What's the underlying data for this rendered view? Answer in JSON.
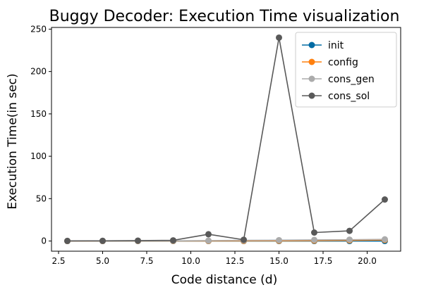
{
  "chart_data": {
    "type": "line",
    "title": "Buggy Decoder: Execution Time visualization",
    "xlabel": "Code distance (d)",
    "ylabel": "Execution Time(in sec)",
    "x": [
      3,
      5,
      7,
      9,
      11,
      13,
      15,
      17,
      19,
      21
    ],
    "xlim": [
      2.1,
      21.9
    ],
    "ylim": [
      -12,
      252
    ],
    "xticks": [
      2.5,
      5.0,
      7.5,
      10.0,
      12.5,
      15.0,
      17.5,
      20.0
    ],
    "xtick_labels": [
      "2.5",
      "5.0",
      "7.5",
      "10.0",
      "12.5",
      "15.0",
      "17.5",
      "20.0"
    ],
    "yticks": [
      0,
      50,
      100,
      150,
      200,
      250
    ],
    "ytick_labels": [
      "0",
      "50",
      "100",
      "150",
      "200",
      "250"
    ],
    "grid": false,
    "legend_position": "top-right",
    "series": [
      {
        "name": "init",
        "color": "#006BA4",
        "values": [
          0.0,
          0.0,
          0.0,
          0.0,
          0.0,
          0.0,
          0.0,
          0.0,
          0.0,
          0.0
        ]
      },
      {
        "name": "config",
        "color": "#FF800E",
        "values": [
          0.02,
          0.03,
          0.05,
          0.08,
          0.12,
          0.18,
          0.3,
          0.5,
          0.8,
          1.2
        ]
      },
      {
        "name": "cons_gen",
        "color": "#ABABAB",
        "values": [
          0.1,
          0.1,
          0.2,
          0.3,
          0.5,
          0.8,
          1.0,
          1.3,
          1.6,
          2.0
        ]
      },
      {
        "name": "cons_sol",
        "color": "#595959",
        "values": [
          0.1,
          0.2,
          0.5,
          0.8,
          8.0,
          1.5,
          240.0,
          10.0,
          12.0,
          49.0
        ]
      }
    ]
  }
}
